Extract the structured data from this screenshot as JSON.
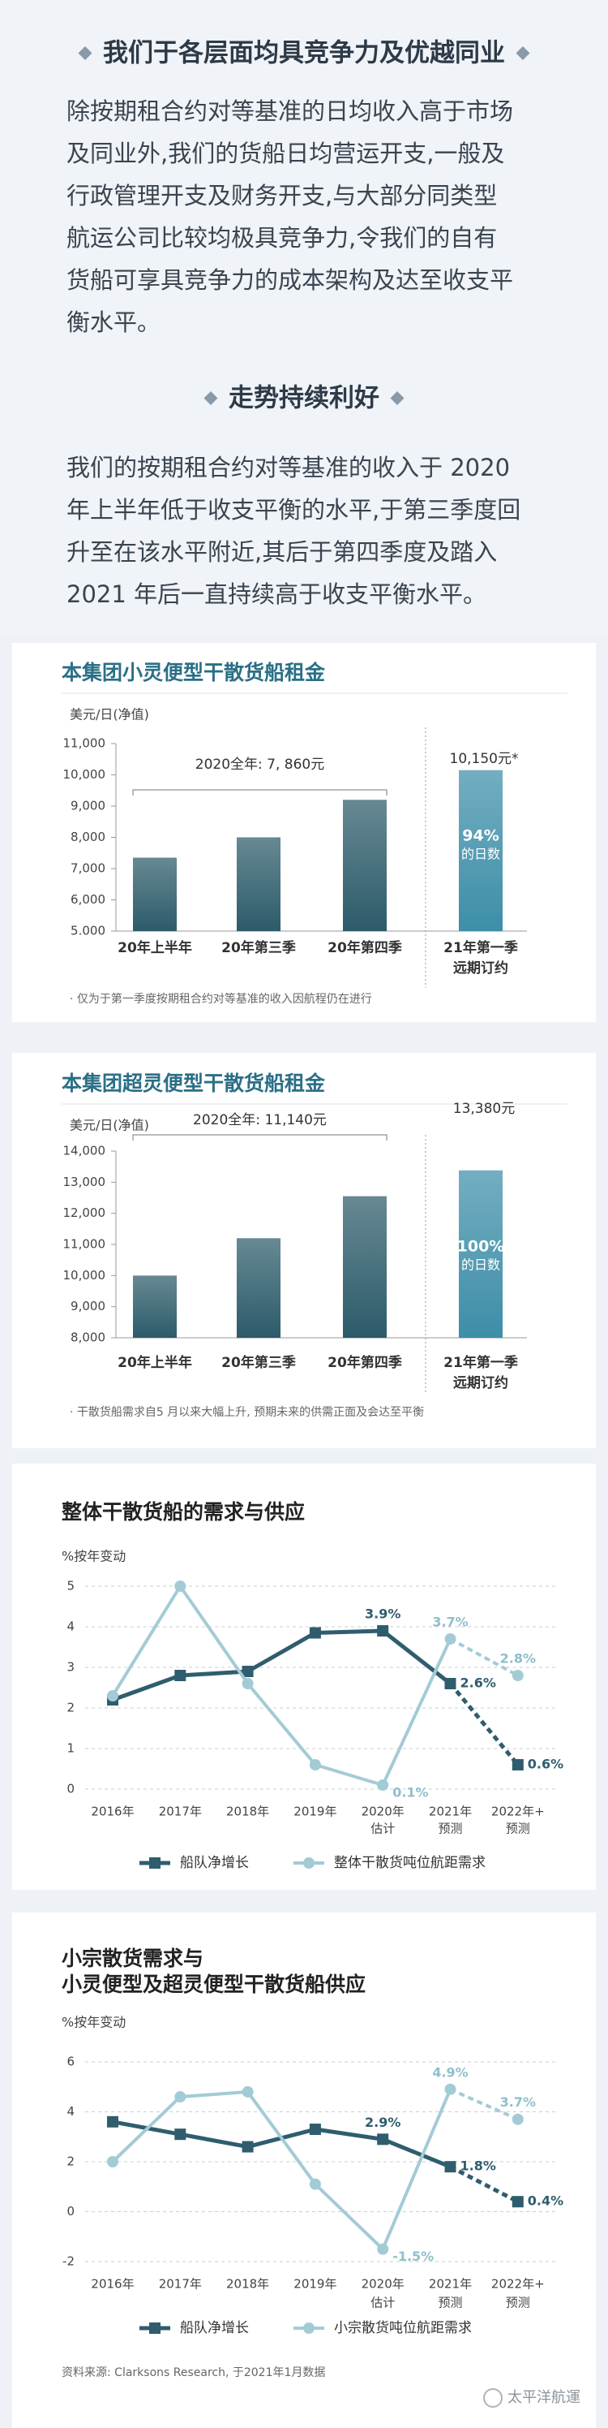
{
  "sections": [
    {
      "heading": "我们于各层面均具竞争力及优越同业",
      "lines": [
        "除按期租合约对等基准的日均收入高于市场",
        "及同业外,我们的货船日均营运开支,一般及",
        "行政管理开支及财务开支,与大部分同类型",
        "航运公司比较均极具竞争力,令我们的自有",
        "货船可享具竞争力的成本架构及达至收支平",
        "衡水平。"
      ]
    },
    {
      "heading": "走势持续利好",
      "lines": [
        "我们的按期租合约对等基准的收入于 2020",
        "年上半年低于收支平衡的水平,于第三季度回",
        "升至在该水平附近,其后于第四季度及踏入",
        "2021 年后一直持续高于收支平衡水平。"
      ]
    }
  ],
  "chart_data": [
    {
      "type": "bar",
      "title": "本集团小灵便型干散货船租金",
      "y_label": "美元/日(净值)",
      "categories": [
        [
          "20年上半年"
        ],
        [
          "20年第三季"
        ],
        [
          "20年第四季"
        ],
        [
          "21年第一季",
          "远期订约"
        ]
      ],
      "values": [
        7350,
        8000,
        9200,
        10150
      ],
      "value_labels": [
        null,
        null,
        null,
        "10,150元*"
      ],
      "colors": [
        "#2c5b6a",
        "#2c5b6a",
        "#2c5b6a",
        "#3d8ea8"
      ],
      "ylim": [
        5000,
        11000
      ],
      "yticks": [
        {
          "value": 5000,
          "label": "5.000"
        },
        {
          "value": 6000,
          "label": "6,000"
        },
        {
          "value": 7000,
          "label": "7,000"
        },
        {
          "value": 8000,
          "label": "8,000"
        },
        {
          "value": 9000,
          "label": "9,000"
        },
        {
          "value": 10000,
          "label": "10,000"
        },
        {
          "value": 11000,
          "label": "11,000"
        }
      ],
      "bracket_label": "2020全年: 7, 860元",
      "bar_note": [
        "94%",
        "的日数"
      ],
      "footnote": "· 仅为于第一季度按期租合约对等基准的收入因航程仍在进行"
    },
    {
      "type": "bar",
      "title": "本集团超灵便型干散货船租金",
      "y_label": "美元/日(净值)",
      "categories": [
        [
          "20年上半年"
        ],
        [
          "20年第三季"
        ],
        [
          "20年第四季"
        ],
        [
          "21年第一季",
          "远期订约"
        ]
      ],
      "values": [
        10000,
        11200,
        12550,
        13380
      ],
      "value_labels": [
        null,
        null,
        null,
        "13,380元"
      ],
      "colors": [
        "#2c5b6a",
        "#2c5b6a",
        "#2c5b6a",
        "#3d8ea8"
      ],
      "ylim": [
        8000,
        14000
      ],
      "yticks": [
        {
          "value": 8000,
          "label": "8,000"
        },
        {
          "value": 9000,
          "label": "9,000"
        },
        {
          "value": 10000,
          "label": "10,000"
        },
        {
          "value": 11000,
          "label": "11,000"
        },
        {
          "value": 12000,
          "label": "12,000"
        },
        {
          "value": 13000,
          "label": "13,000"
        },
        {
          "value": 14000,
          "label": "14,000"
        }
      ],
      "bracket_label": "2020全年: 11,140元",
      "bar_note": [
        "100%",
        "的日数"
      ],
      "footnote": "· 干散货船需求自5 月以来大幅上升, 预期未来的供需正面及会达至平衡"
    },
    {
      "type": "line",
      "title": "整体干散货船的需求与供应",
      "y_label": "%按年变动",
      "categories": [
        [
          "2016年"
        ],
        [
          "2017年"
        ],
        [
          "2018年"
        ],
        [
          "2019年"
        ],
        [
          "2020年",
          "估计"
        ],
        [
          "2021年",
          "预测"
        ],
        [
          "2022年+",
          "预测"
        ]
      ],
      "ylim": [
        0,
        5
      ],
      "yticks": [
        0,
        1,
        2,
        3,
        4,
        5
      ],
      "grid": true,
      "series": [
        {
          "name": "船队净增长",
          "color": "#2f5d6e",
          "marker": "square",
          "values": [
            2.2,
            2.8,
            2.9,
            3.85,
            3.9,
            2.6,
            0.6
          ],
          "value_labels": [
            null,
            null,
            null,
            null,
            "3.9%",
            "2.6%",
            "0.6%"
          ]
        },
        {
          "name": "整体干散货吨位航距需求",
          "color": "#a3cbd6",
          "marker": "circle",
          "values": [
            2.3,
            5.0,
            2.6,
            0.6,
            0.1,
            3.7,
            2.8
          ],
          "value_labels": [
            null,
            null,
            null,
            null,
            "0.1%",
            "3.7%",
            "2.8%"
          ]
        }
      ]
    },
    {
      "type": "line",
      "title": [
        "小宗散货需求与",
        "小灵便型及超灵便型干散货船供应"
      ],
      "y_label": "%按年变动",
      "categories": [
        [
          "2016年"
        ],
        [
          "2017年"
        ],
        [
          "2018年"
        ],
        [
          "2019年"
        ],
        [
          "2020年",
          "估计"
        ],
        [
          "2021年",
          "预测"
        ],
        [
          "2022年+",
          "预测"
        ]
      ],
      "ylim": [
        -2,
        6
      ],
      "yticks": [
        -2,
        0,
        2,
        4,
        6
      ],
      "grid": true,
      "series": [
        {
          "name": "船队净增长",
          "color": "#2f5d6e",
          "marker": "square",
          "values": [
            3.6,
            3.1,
            2.6,
            3.3,
            2.9,
            1.8,
            0.4
          ],
          "value_labels": [
            null,
            null,
            null,
            null,
            "2.9%",
            "1.8%",
            "0.4%"
          ]
        },
        {
          "name": "小宗散货吨位航距需求",
          "color": "#a3cbd6",
          "marker": "circle",
          "values": [
            2.0,
            4.6,
            4.8,
            1.1,
            -1.5,
            4.9,
            3.7
          ],
          "value_labels": [
            null,
            null,
            null,
            null,
            "-1.5%",
            "4.9%",
            "3.7%"
          ]
        }
      ],
      "source": "资料来源: Clarksons Research, 于2021年1月数据"
    }
  ],
  "watermark": "太平洋航運"
}
